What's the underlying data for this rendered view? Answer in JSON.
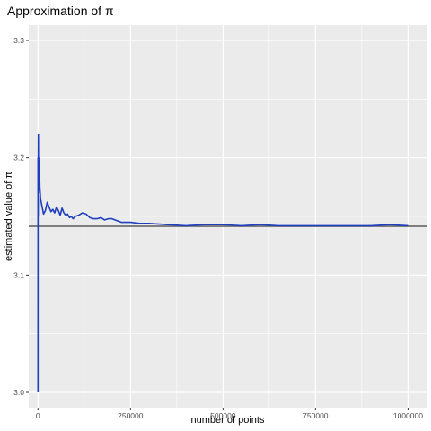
{
  "chart_data": {
    "type": "line",
    "title": "Approximation of π",
    "xlabel": "number of points",
    "ylabel": "estimated value of π",
    "xlim": [
      -25000,
      1050000
    ],
    "ylim": [
      2.987,
      3.313
    ],
    "x_ticks": [
      0,
      250000,
      500000,
      750000,
      1000000
    ],
    "x_tick_labels": [
      "0",
      "250000",
      "500000",
      "750000",
      "1000000"
    ],
    "y_ticks": [
      3.0,
      3.1,
      3.2,
      3.3
    ],
    "y_tick_labels": [
      "3.0",
      "3.1",
      "3.2",
      "3.3"
    ],
    "grid": true,
    "legend": "none",
    "reference_line": {
      "y": 3.14159
    },
    "series": [
      {
        "x": [
          1,
          100,
          500,
          1000,
          1500,
          2000,
          3000,
          4000,
          5000,
          7000,
          10000,
          15000,
          20000,
          25000,
          30000,
          35000,
          40000,
          45000,
          50000,
          55000,
          60000,
          65000,
          70000,
          75000,
          80000,
          85000,
          90000,
          95000,
          100000,
          110000,
          120000,
          130000,
          140000,
          150000,
          160000,
          170000,
          180000,
          190000,
          200000,
          225000,
          250000,
          275000,
          300000,
          350000,
          400000,
          450000,
          500000,
          550000,
          600000,
          650000,
          700000,
          750000,
          800000,
          850000,
          900000,
          950000,
          1000000
        ],
        "y": [
          3.0,
          3.2,
          3.15,
          3.22,
          3.17,
          3.2,
          3.18,
          3.19,
          3.175,
          3.165,
          3.16,
          3.152,
          3.155,
          3.162,
          3.158,
          3.154,
          3.156,
          3.153,
          3.158,
          3.155,
          3.151,
          3.157,
          3.153,
          3.151,
          3.152,
          3.149,
          3.15,
          3.148,
          3.15,
          3.151,
          3.153,
          3.152,
          3.149,
          3.148,
          3.148,
          3.149,
          3.147,
          3.148,
          3.148,
          3.145,
          3.145,
          3.144,
          3.144,
          3.143,
          3.142,
          3.143,
          3.143,
          3.142,
          3.143,
          3.142,
          3.142,
          3.142,
          3.142,
          3.142,
          3.142,
          3.143,
          3.142
        ]
      }
    ],
    "colors": {
      "line": "#1f3fbf",
      "reference": "#6e6e6e",
      "panel": "#ebebeb",
      "grid": "#ffffff"
    }
  }
}
